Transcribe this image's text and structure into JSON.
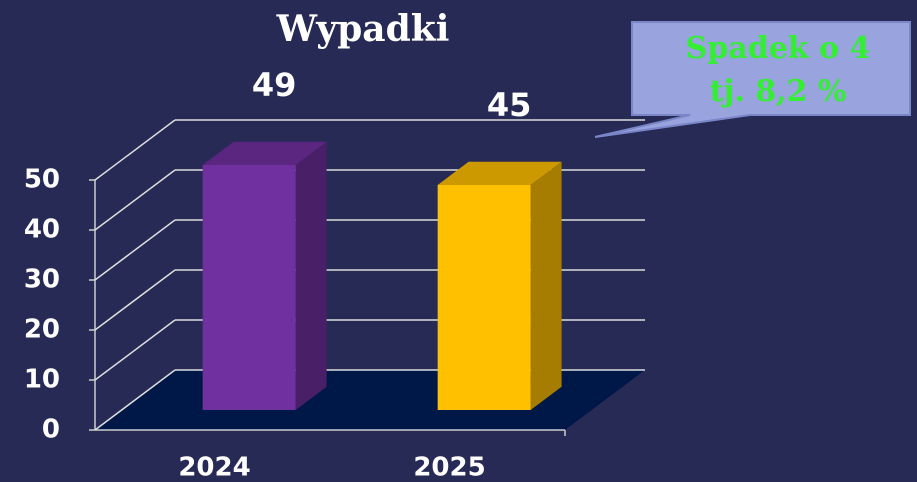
{
  "chart_data": {
    "type": "bar",
    "title": "Wypadki",
    "categories": [
      "2024",
      "2025"
    ],
    "values": [
      49,
      45
    ],
    "colors": [
      "#7030a0",
      "#ffc000"
    ],
    "ylim": [
      0,
      50
    ],
    "yticks": [
      0,
      10,
      20,
      30,
      40,
      50
    ],
    "grid": true,
    "annotation": [
      "Spadek o 4",
      "tj. 8,2 %"
    ]
  }
}
